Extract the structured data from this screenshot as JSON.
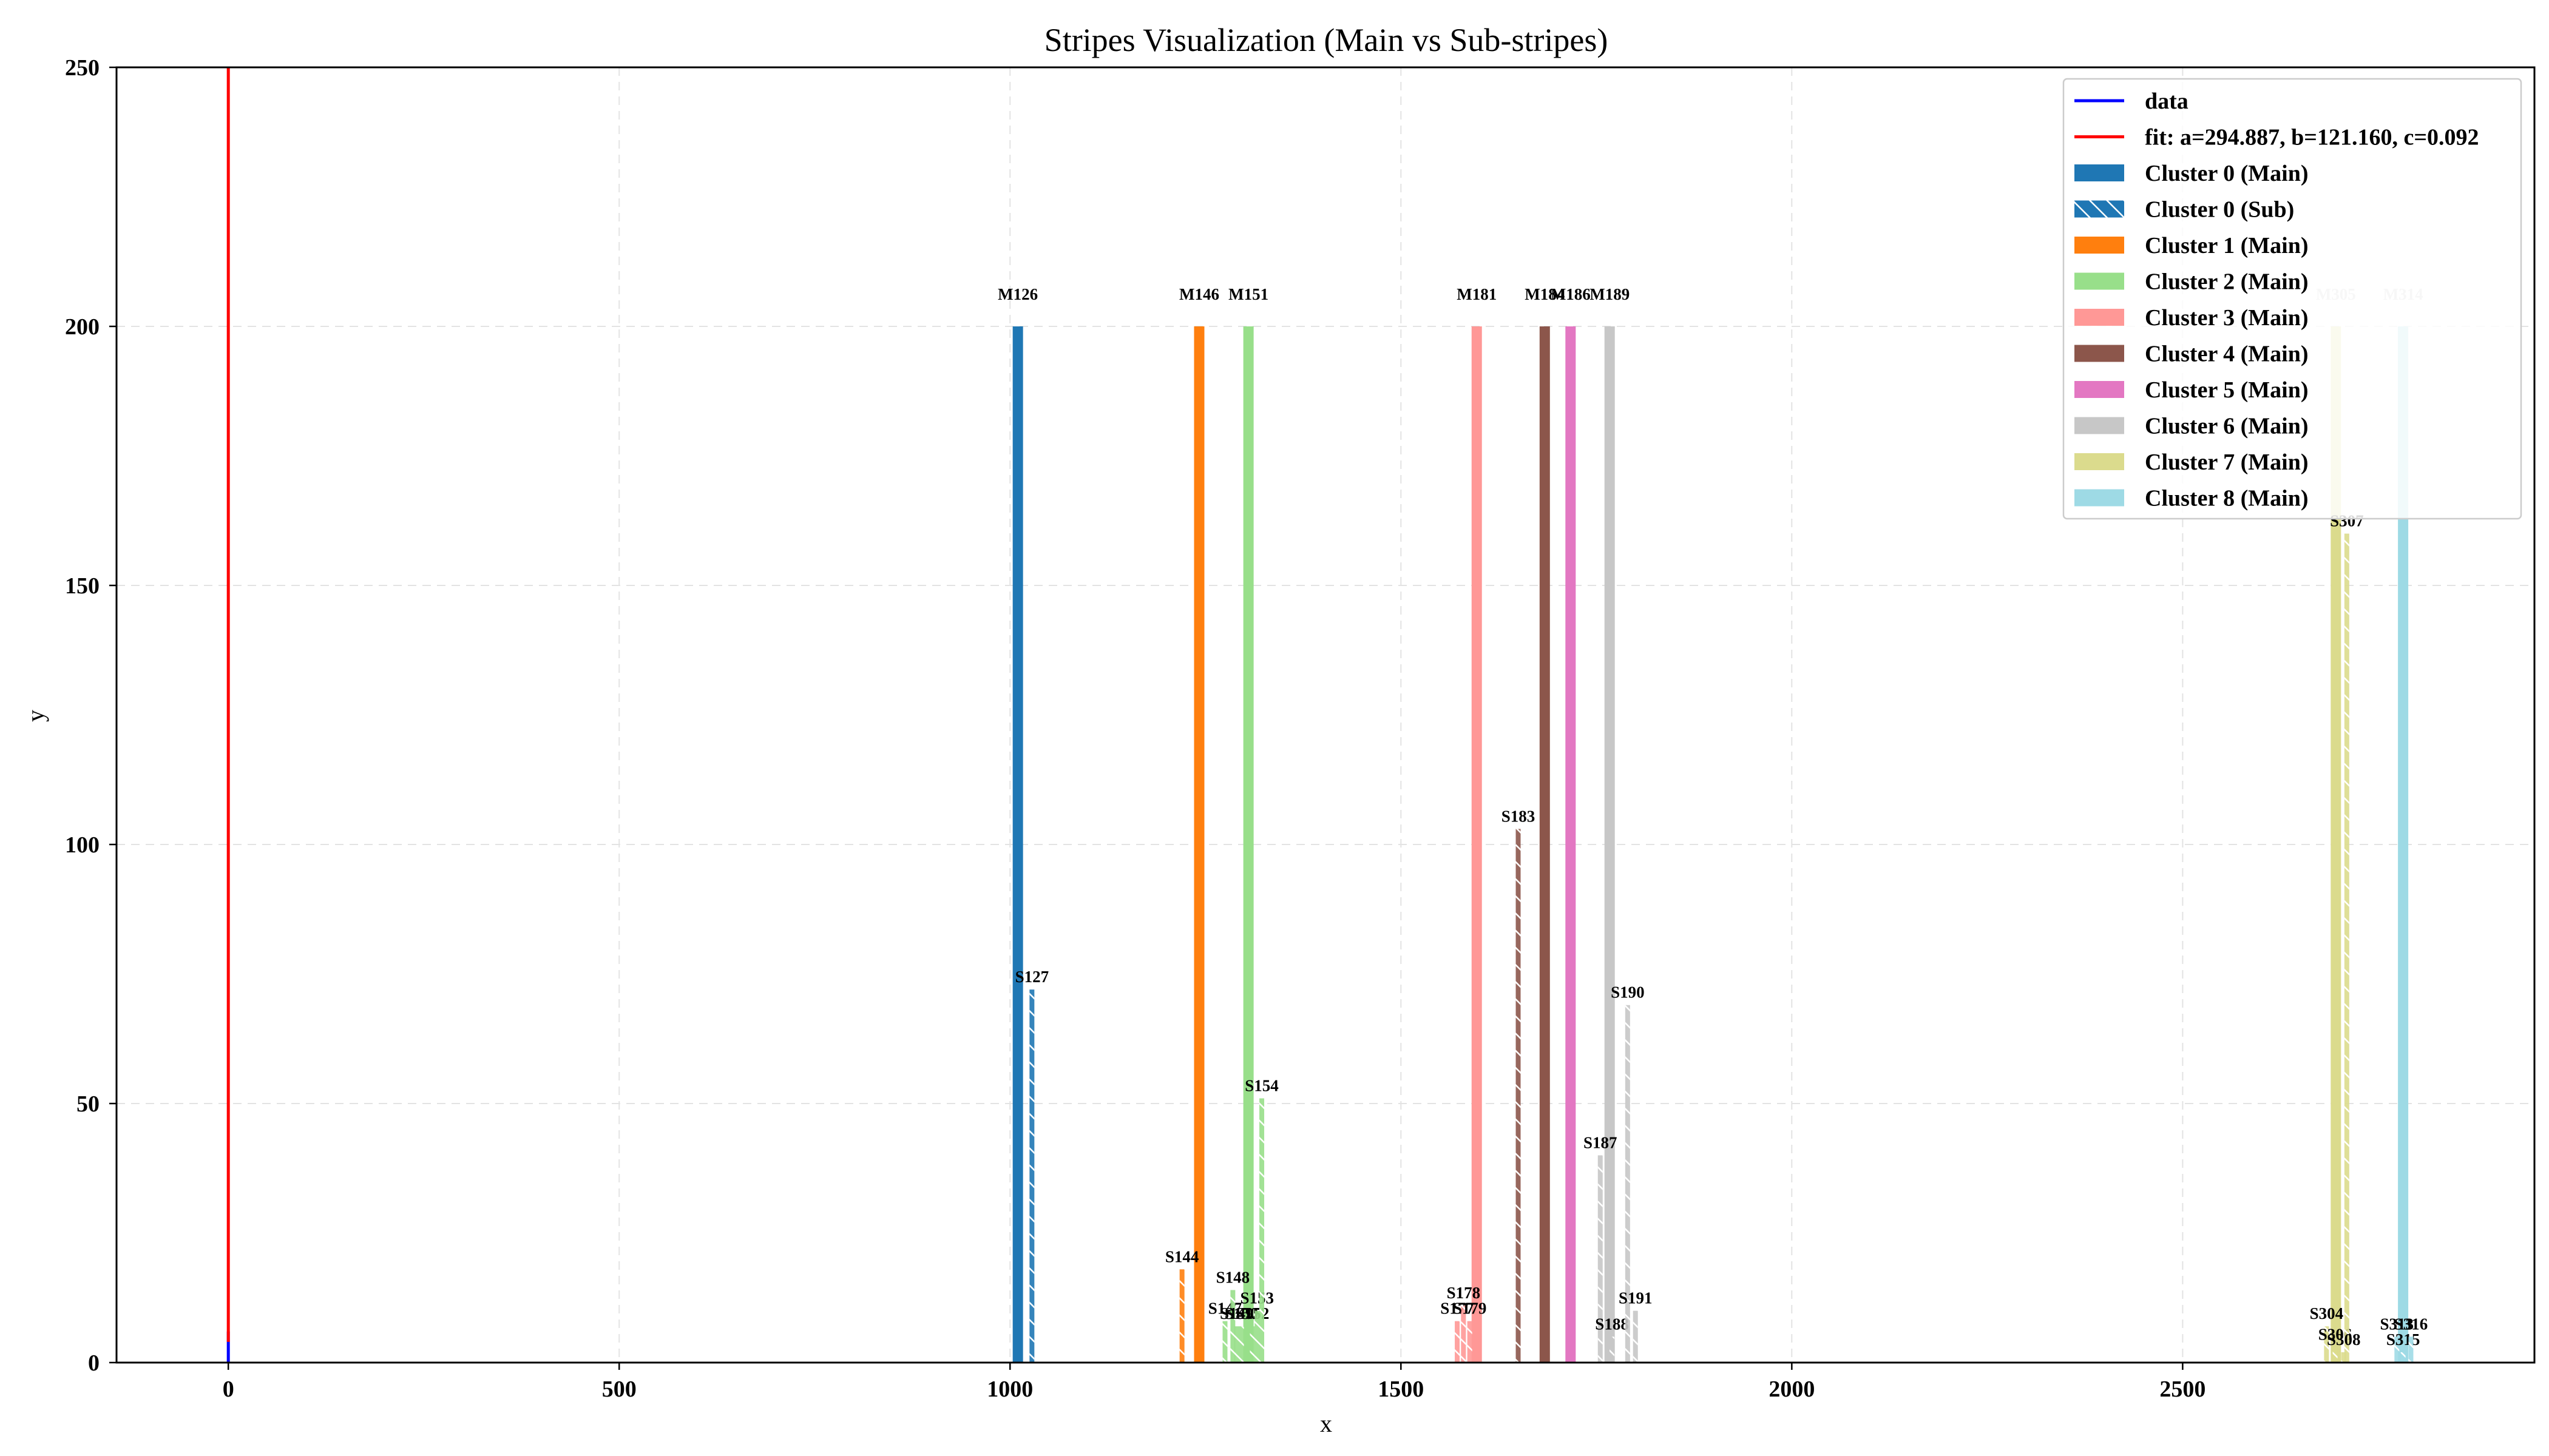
{
  "chart_data": {
    "type": "bar",
    "title": "Stripes Visualization (Main vs Sub-stripes)",
    "xlabel": "x",
    "ylabel": "y",
    "xlim": [
      -143,
      2950
    ],
    "ylim": [
      0,
      250
    ],
    "xticks": [
      0,
      500,
      1000,
      1500,
      2000,
      2500
    ],
    "yticks": [
      0,
      50,
      100,
      150,
      200,
      250
    ],
    "grid": true,
    "legend_position": "top-right",
    "legend": [
      {
        "label": "data",
        "kind": "line",
        "color": "#0000ff"
      },
      {
        "label": "fit: a=294.887, b=121.160, c=0.092",
        "kind": "line",
        "color": "#ff0000"
      },
      {
        "label": "Cluster 0 (Main)",
        "kind": "main",
        "color": "#1f77b4"
      },
      {
        "label": "Cluster 0 (Sub)",
        "kind": "sub",
        "color": "#1f77b4"
      },
      {
        "label": "Cluster 1 (Main)",
        "kind": "main",
        "color": "#ff7f0e"
      },
      {
        "label": "Cluster 2 (Main)",
        "kind": "main",
        "color": "#98df8a"
      },
      {
        "label": "Cluster 3 (Main)",
        "kind": "main",
        "color": "#ff9896"
      },
      {
        "label": "Cluster 4 (Main)",
        "kind": "main",
        "color": "#8c564b"
      },
      {
        "label": "Cluster 5 (Main)",
        "kind": "main",
        "color": "#e377c2"
      },
      {
        "label": "Cluster 6 (Main)",
        "kind": "main",
        "color": "#c7c7c7"
      },
      {
        "label": "Cluster 7 (Main)",
        "kind": "main",
        "color": "#dbdb8d"
      },
      {
        "label": "Cluster 8 (Main)",
        "kind": "main",
        "color": "#9edae5"
      }
    ],
    "lines": [
      {
        "name": "data",
        "color": "#0000ff",
        "x": [
          0,
          0
        ],
        "y": [
          0,
          6
        ]
      },
      {
        "name": "fit",
        "color": "#ff0000",
        "x": [
          0,
          0
        ],
        "y": [
          4,
          250
        ]
      }
    ],
    "stripes": [
      {
        "label": "M126",
        "cluster": 0,
        "kind": "main",
        "x": 1010,
        "y": 200
      },
      {
        "label": "S127",
        "cluster": 0,
        "kind": "sub",
        "x": 1028,
        "y": 72
      },
      {
        "label": "M146",
        "cluster": 1,
        "kind": "main",
        "x": 1242,
        "y": 200
      },
      {
        "label": "S144",
        "cluster": 1,
        "kind": "sub",
        "x": 1220,
        "y": 18
      },
      {
        "label": "M151",
        "cluster": 2,
        "kind": "main",
        "x": 1305,
        "y": 200
      },
      {
        "label": "S147",
        "cluster": 2,
        "kind": "sub",
        "x": 1275,
        "y": 8
      },
      {
        "label": "S148",
        "cluster": 2,
        "kind": "sub",
        "x": 1285,
        "y": 14
      },
      {
        "label": "S149",
        "cluster": 2,
        "kind": "sub",
        "x": 1290,
        "y": 7
      },
      {
        "label": "S150",
        "cluster": 2,
        "kind": "sub",
        "x": 1296,
        "y": 7
      },
      {
        "label": "S152",
        "cluster": 2,
        "kind": "sub",
        "x": 1310,
        "y": 7
      },
      {
        "label": "S153",
        "cluster": 2,
        "kind": "sub",
        "x": 1316,
        "y": 10
      },
      {
        "label": "S154",
        "cluster": 2,
        "kind": "sub",
        "x": 1322,
        "y": 51
      },
      {
        "label": "M181",
        "cluster": 3,
        "kind": "main",
        "x": 1597,
        "y": 200
      },
      {
        "label": "S177",
        "cluster": 3,
        "kind": "sub",
        "x": 1572,
        "y": 8
      },
      {
        "label": "S178",
        "cluster": 3,
        "kind": "sub",
        "x": 1580,
        "y": 11
      },
      {
        "label": "S179",
        "cluster": 3,
        "kind": "sub",
        "x": 1588,
        "y": 8
      },
      {
        "label": "M184",
        "cluster": 4,
        "kind": "main",
        "x": 1684,
        "y": 200
      },
      {
        "label": "S183",
        "cluster": 4,
        "kind": "sub",
        "x": 1650,
        "y": 103
      },
      {
        "label": "M186",
        "cluster": 5,
        "kind": "main",
        "x": 1717,
        "y": 200
      },
      {
        "label": "M189",
        "cluster": 6,
        "kind": "main",
        "x": 1767,
        "y": 200
      },
      {
        "label": "S187",
        "cluster": 6,
        "kind": "sub",
        "x": 1755,
        "y": 40
      },
      {
        "label": "S188",
        "cluster": 6,
        "kind": "sub",
        "x": 1770,
        "y": 5
      },
      {
        "label": "S190",
        "cluster": 6,
        "kind": "sub",
        "x": 1790,
        "y": 69
      },
      {
        "label": "S191",
        "cluster": 6,
        "kind": "sub",
        "x": 1800,
        "y": 10
      },
      {
        "label": "M305",
        "cluster": 7,
        "kind": "main",
        "x": 2696,
        "y": 200
      },
      {
        "label": "S304",
        "cluster": 7,
        "kind": "sub",
        "x": 2684,
        "y": 7
      },
      {
        "label": "S306",
        "cluster": 7,
        "kind": "sub",
        "x": 2695,
        "y": 3
      },
      {
        "label": "S307",
        "cluster": 7,
        "kind": "sub",
        "x": 2710,
        "y": 160
      },
      {
        "label": "S308",
        "cluster": 7,
        "kind": "sub",
        "x": 2706,
        "y": 2
      },
      {
        "label": "M314",
        "cluster": 8,
        "kind": "main",
        "x": 2782,
        "y": 200
      },
      {
        "label": "S313",
        "cluster": 8,
        "kind": "sub",
        "x": 2774,
        "y": 5
      },
      {
        "label": "S315",
        "cluster": 8,
        "kind": "sub",
        "x": 2782,
        "y": 2
      },
      {
        "label": "S316",
        "cluster": 8,
        "kind": "sub",
        "x": 2792,
        "y": 5
      }
    ],
    "cluster_colors": [
      "#1f77b4",
      "#ff7f0e",
      "#98df8a",
      "#ff9896",
      "#8c564b",
      "#e377c2",
      "#c7c7c7",
      "#dbdb8d",
      "#9edae5"
    ]
  }
}
